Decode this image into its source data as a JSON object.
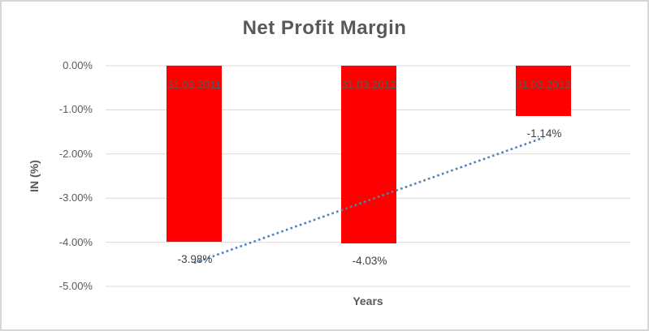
{
  "chart_data": {
    "type": "bar",
    "title": "Net Profit Margin",
    "xlabel": "Years",
    "ylabel": "IN (%)",
    "categories": [
      "31.03.2011",
      "31.03.2012",
      "31.03.2013"
    ],
    "values": [
      -3.98,
      -4.03,
      -1.14
    ],
    "data_labels": [
      "-3.98%",
      "-4.03%",
      "-1.14%"
    ],
    "ytick_labels": [
      "0.00%",
      "-1.00%",
      "-2.00%",
      "-3.00%",
      "-4.00%",
      "-5.00%"
    ],
    "ytick_values": [
      0,
      -1,
      -2,
      -3,
      -4,
      -5
    ],
    "ylim": [
      -5,
      0
    ],
    "grid": true,
    "legend": false,
    "trendline": {
      "type": "linear",
      "style": "dotted"
    },
    "colors": {
      "bar": "#ff0000",
      "trendline": "#4f81bd",
      "gridline": "#d9d9d9",
      "title_text": "#595959",
      "axis_text": "#595959",
      "data_label_text": "#404040"
    }
  }
}
